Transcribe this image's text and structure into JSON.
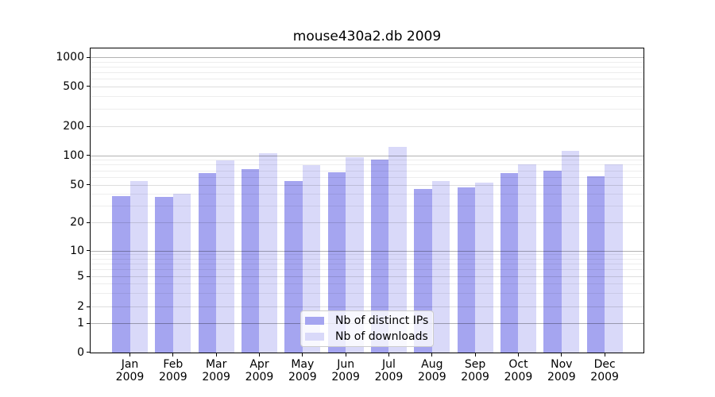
{
  "chart_data": {
    "type": "bar",
    "title": "mouse430a2.db 2009",
    "categories": [
      "Jan",
      "Feb",
      "Mar",
      "Apr",
      "May",
      "Jun",
      "Jul",
      "Aug",
      "Sep",
      "Oct",
      "Nov",
      "Dec"
    ],
    "category_year": "2009",
    "series": [
      {
        "name": "Nb of distinct IPs",
        "color": "#a5a5f0",
        "values": [
          38,
          37,
          65,
          72,
          54,
          67,
          90,
          45,
          47,
          65,
          70,
          61
        ]
      },
      {
        "name": "Nb of downloads",
        "color": "#d9d9f9",
        "values": [
          54,
          40,
          89,
          104,
          79,
          96,
          122,
          54,
          52,
          80,
          110,
          80
        ]
      }
    ],
    "yscale": "symlog",
    "y_ticks": [
      0,
      1,
      2,
      5,
      10,
      20,
      50,
      100,
      200,
      500,
      1000
    ],
    "ylim": [
      0,
      1200
    ],
    "xlabel": "",
    "ylabel": "",
    "grid": true,
    "legend_position": "lower-center"
  }
}
